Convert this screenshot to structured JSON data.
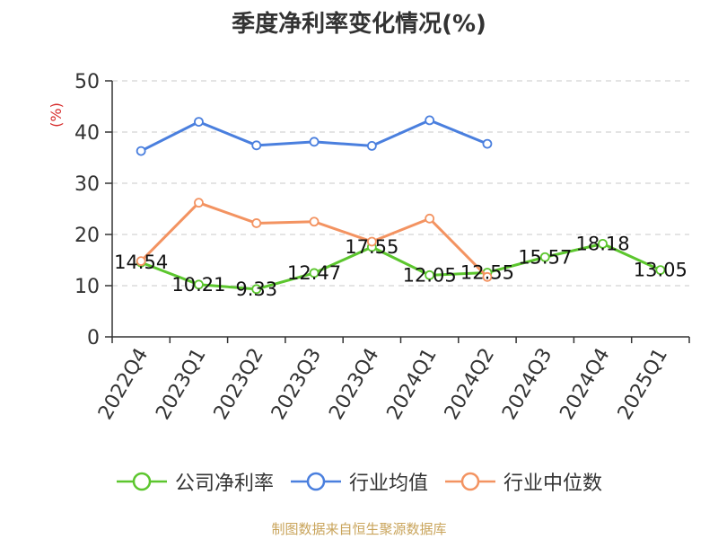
{
  "chart_data": {
    "type": "line",
    "title": "季度净利率变化情况(%)",
    "ylabel": "(%)",
    "ylim": [
      0,
      50
    ],
    "yticks": [
      0,
      10,
      20,
      30,
      40,
      50
    ],
    "grid": true,
    "legend_placement": "bottom",
    "categories": [
      "2022Q4",
      "2023Q1",
      "2023Q2",
      "2023Q3",
      "2023Q4",
      "2024Q1",
      "2024Q2",
      "2024Q3",
      "2024Q4",
      "2025Q1"
    ],
    "series": [
      {
        "name": "公司净利率",
        "color": "#5cc62e",
        "show_labels": true,
        "values": [
          14.54,
          10.21,
          9.33,
          12.47,
          17.55,
          12.05,
          12.55,
          15.57,
          18.18,
          13.05
        ]
      },
      {
        "name": "行业均值",
        "color": "#4a7fde",
        "show_labels": false,
        "values": [
          36.3,
          42.0,
          37.4,
          38.1,
          37.3,
          42.3,
          37.7,
          null,
          null,
          null
        ]
      },
      {
        "name": "行业中位数",
        "color": "#f39361",
        "show_labels": false,
        "values": [
          14.8,
          26.2,
          22.2,
          22.5,
          18.6,
          23.1,
          11.7,
          null,
          null,
          null
        ]
      }
    ]
  },
  "source_note": "制图数据来自恒生聚源数据库"
}
